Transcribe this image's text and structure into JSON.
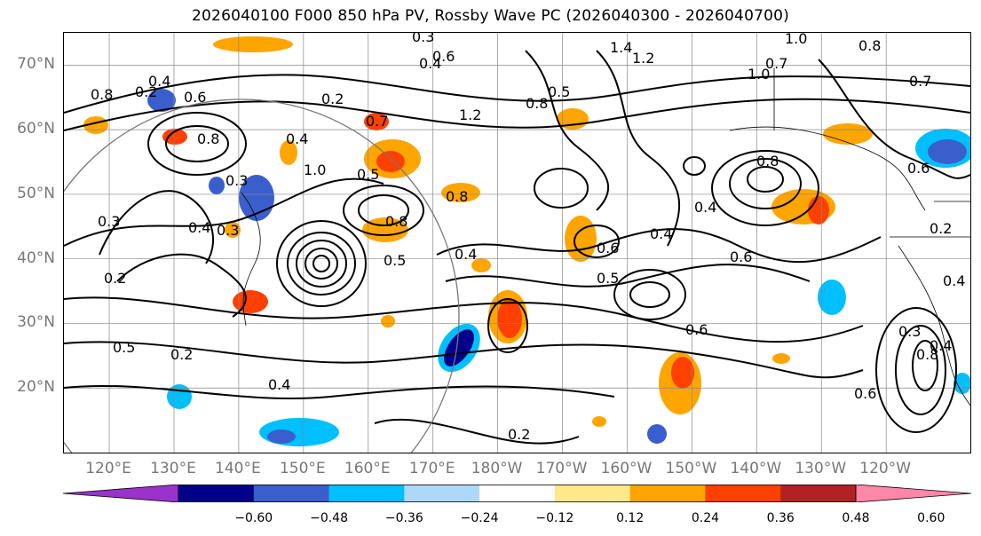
{
  "title": "2026040100 F000 850 hPa PV, Rossby Wave PC (2026040300 - 2026040700)",
  "axes": {
    "lat_labels": [
      "70°N",
      "60°N",
      "50°N",
      "40°N",
      "30°N",
      "20°N"
    ],
    "lon_labels": [
      "120°E",
      "130°E",
      "140°E",
      "150°E",
      "160°E",
      "170°E",
      "180°W",
      "170°W",
      "160°W",
      "150°W",
      "140°W",
      "130°W",
      "120°W"
    ],
    "grid": true
  },
  "colorbar": {
    "colors": [
      "#9933cc",
      "#00008b",
      "#3a5fcd",
      "#00bfff",
      "#add8f8",
      "#ffffff",
      "#ffe88a",
      "#ffa500",
      "#ff4000",
      "#b22222",
      "#ff88aa"
    ],
    "ticks": [
      "−0.60",
      "−0.48",
      "−0.36",
      "−0.24",
      "−0.12",
      "0.12",
      "0.24",
      "0.36",
      "0.48",
      "0.60"
    ],
    "extend": "both"
  },
  "contour_labels": [
    "0.3",
    "0.4",
    "1.4",
    "1.2",
    "1.0",
    "0.6",
    "0.8",
    "0.5",
    "1.2",
    "0.2",
    "0.4",
    "0.6",
    "0.8",
    "0.4",
    "0.7",
    "1.0",
    "0.8",
    "0.7",
    "0.8",
    "0.5",
    "0.7",
    "0.8",
    "0.8",
    "1.0",
    "0.3",
    "0.4",
    "0.4",
    "0.6",
    "0.5",
    "0.2",
    "0.4",
    "0.8",
    "0.6",
    "0.5",
    "0.6",
    "0.4",
    "0.3",
    "0.3",
    "0.2",
    "0.5",
    "0.2",
    "0.4",
    "0.2",
    "0.6",
    "0.3",
    "0.4",
    "0.8",
    "0.6",
    "0.2",
    "0.4"
  ],
  "shading_note": "Rossby Wave PC",
  "chart_data": {
    "type": "heatmap",
    "title": "2026040100 F000 850 hPa PV, Rossby Wave PC (2026040300 - 2026040700)",
    "xlabel": "",
    "ylabel": "",
    "x_ticks": [
      "120°E",
      "130°E",
      "140°E",
      "150°E",
      "160°E",
      "170°E",
      "180°W",
      "170°W",
      "160°W",
      "150°W",
      "140°W",
      "130°W",
      "120°W"
    ],
    "y_ticks": [
      "70°N",
      "60°N",
      "50°N",
      "40°N",
      "30°N",
      "20°N"
    ],
    "lon_range": [
      113,
      253
    ],
    "lat_range": [
      10,
      75
    ],
    "colorbar_levels": [
      -0.6,
      -0.48,
      -0.36,
      -0.24,
      -0.12,
      0.12,
      0.24,
      0.36,
      0.48,
      0.6
    ],
    "grid": true
  }
}
